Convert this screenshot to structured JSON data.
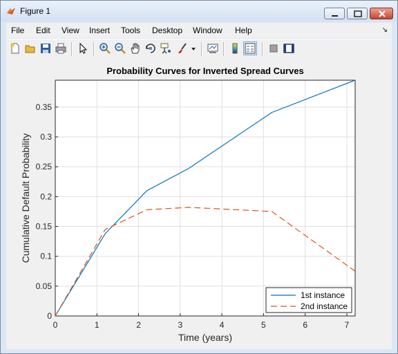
{
  "window": {
    "title": "Figure 1"
  },
  "menu": {
    "items": [
      "File",
      "Edit",
      "View",
      "Insert",
      "Tools",
      "Desktop",
      "Window",
      "Help"
    ]
  },
  "toolbar": {
    "icons": [
      "new-figure-icon",
      "open-file-icon",
      "save-icon",
      "print-icon",
      "pointer-icon",
      "zoom-in-icon",
      "zoom-out-icon",
      "pan-icon",
      "rotate-3d-icon",
      "data-cursor-icon",
      "brush-icon",
      "brush-dropdown-icon",
      "link-plot-icon",
      "colorbar-icon",
      "legend-icon",
      "hide-plot-tools-icon",
      "show-plot-tools-icon"
    ]
  },
  "chart_data": {
    "type": "line",
    "title": "Probability Curves for Inverted Spread Curves",
    "xlabel": "Time (years)",
    "ylabel": "Cumulative Default Probability",
    "xlim": [
      0,
      7.2
    ],
    "ylim": [
      0,
      0.395
    ],
    "xticks": [
      "0",
      "1",
      "2",
      "3",
      "4",
      "5",
      "6",
      "7"
    ],
    "yticks": [
      "0",
      "0.05",
      "0.1",
      "0.15",
      "0.2",
      "0.25",
      "0.3",
      "0.35"
    ],
    "grid": true,
    "legend_position": "bottom-right",
    "series": [
      {
        "name": "1st instance",
        "color": "#0072bd",
        "style": "solid",
        "x": [
          0,
          1.2,
          2.2,
          3.2,
          5.2,
          7.2
        ],
        "y": [
          0,
          0.138,
          0.21,
          0.247,
          0.341,
          0.395
        ]
      },
      {
        "name": "2nd instance",
        "color": "#d95319",
        "style": "dashed",
        "x": [
          0,
          1.2,
          2.2,
          3.2,
          5.2,
          7.2
        ],
        "y": [
          0,
          0.145,
          0.178,
          0.182,
          0.175,
          0.075
        ]
      }
    ]
  }
}
